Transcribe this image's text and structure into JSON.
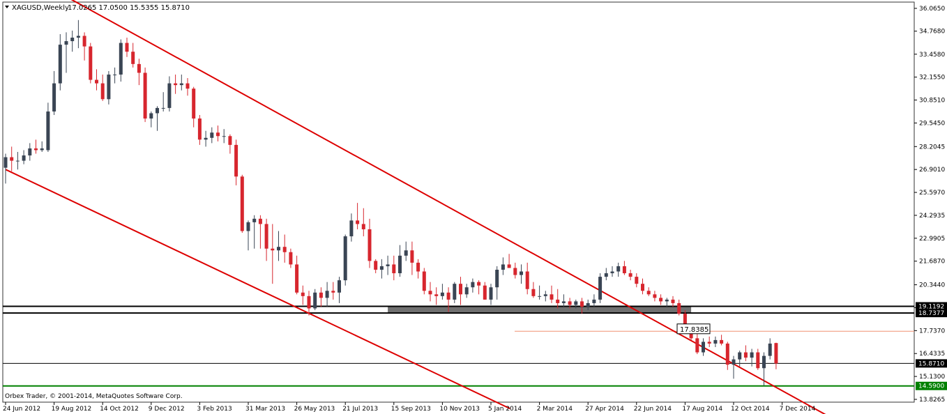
{
  "header": {
    "symbol": "XAGUSD,Weekly",
    "ohlc": "17.0265 17.0500 15.5355 15.8710"
  },
  "footer": {
    "copyright": "Orbex Trader, © 2001-2014, MetaQuotes Software Corp."
  },
  "colors": {
    "background": "#ffffff",
    "bull_candle": "#3a4554",
    "bear_candle": "#d7262e",
    "channel": "#dd0000",
    "support": "#000000",
    "zone": "#707070",
    "low_line": "#008000",
    "resistance_line": "#f09070"
  },
  "chart_data": {
    "type": "candlestick",
    "symbol": "XAGUSD",
    "timeframe": "Weekly",
    "grid": false,
    "ylim": [
      13.2,
      36.5
    ],
    "y_ticks": [
      "36.0650",
      "34.7680",
      "33.4580",
      "32.1550",
      "30.8510",
      "29.5450",
      "28.2045",
      "26.9010",
      "25.5970",
      "24.2935",
      "22.9905",
      "21.6870",
      "20.3440",
      "19.0410",
      "17.7370",
      "16.4335",
      "15.1300",
      "13.8265"
    ],
    "x_ticks": [
      "24 Jun 2012",
      "19 Aug 2012",
      "14 Oct 2012",
      "9 Dec 2012",
      "3 Feb 2013",
      "31 Mar 2013",
      "26 May 2013",
      "21 Jul 2013",
      "15 Sep 2013",
      "10 Nov 2013",
      "5 Jan 2014",
      "2 Mar 2014",
      "27 Apr 2014",
      "22 Jun 2014",
      "17 Aug 2014",
      "12 Oct 2014",
      "7 Dec 2014"
    ],
    "price_labels": [
      {
        "text": "19.1192",
        "value": 19.1192,
        "style": "dark"
      },
      {
        "text": "18.7377",
        "value": 18.7377,
        "style": "dark"
      },
      {
        "text": "15.8710",
        "value": 15.871,
        "style": "dark"
      },
      {
        "text": "14.5900",
        "value": 14.59,
        "style": "green"
      }
    ],
    "annotation": {
      "text": "17.8385",
      "value": 17.8385
    },
    "horizontal_lines": [
      {
        "name": "support-upper",
        "value": 19.1192
      },
      {
        "name": "support-lower",
        "value": 18.7377
      },
      {
        "name": "current-close",
        "value": 15.871
      },
      {
        "name": "low",
        "value": 14.59
      },
      {
        "name": "resistance-thin",
        "value": 17.7
      }
    ],
    "support_zone": {
      "from": "8 Sep 2013",
      "to": "24 Aug 2014",
      "low": 18.7377,
      "high": 19.1192
    },
    "channel_lines": [
      {
        "name": "channel-upper",
        "from": {
          "date": "12 Aug 2012",
          "price": 37.3
        },
        "to": {
          "date": "1 Feb 2015",
          "price": 12.8
        }
      },
      {
        "name": "channel-lower",
        "from": {
          "date": "24 Jun 2012",
          "price": 26.9
        },
        "to": {
          "date": "27 Jan 2014",
          "price": 13.3
        }
      }
    ],
    "candles": [
      [
        27.0,
        27.8,
        26.1,
        27.6
      ],
      [
        27.6,
        28.2,
        26.8,
        27.4
      ],
      [
        27.4,
        27.9,
        26.9,
        27.4
      ],
      [
        27.4,
        28.0,
        27.2,
        27.7
      ],
      [
        27.7,
        28.4,
        27.4,
        28.1
      ],
      [
        28.1,
        28.6,
        27.8,
        28.0
      ],
      [
        28.0,
        28.5,
        27.9,
        28.1
      ],
      [
        28.0,
        30.7,
        27.9,
        30.2
      ],
      [
        30.2,
        32.5,
        30.0,
        31.8
      ],
      [
        31.8,
        34.6,
        31.4,
        34.0
      ],
      [
        34.0,
        34.7,
        32.4,
        34.2
      ],
      [
        34.2,
        34.8,
        33.6,
        34.4
      ],
      [
        34.4,
        35.4,
        33.8,
        34.5
      ],
      [
        34.5,
        34.7,
        33.1,
        33.9
      ],
      [
        33.9,
        34.1,
        31.8,
        32.0
      ],
      [
        32.0,
        32.6,
        31.4,
        31.8
      ],
      [
        31.8,
        32.3,
        30.8,
        30.9
      ],
      [
        30.9,
        32.5,
        30.6,
        32.3
      ],
      [
        32.3,
        32.7,
        31.8,
        32.3
      ],
      [
        32.3,
        34.3,
        31.9,
        34.1
      ],
      [
        34.1,
        34.4,
        33.3,
        33.6
      ],
      [
        33.6,
        34.1,
        32.7,
        32.9
      ],
      [
        32.9,
        33.2,
        31.7,
        32.4
      ],
      [
        32.4,
        32.7,
        29.6,
        29.8
      ],
      [
        29.8,
        30.2,
        29.3,
        30.1
      ],
      [
        30.1,
        30.5,
        29.1,
        30.4
      ],
      [
        30.4,
        31.3,
        30.2,
        30.4
      ],
      [
        30.4,
        32.2,
        30.2,
        31.8
      ],
      [
        31.8,
        32.3,
        31.2,
        31.7
      ],
      [
        31.7,
        32.3,
        31.4,
        31.8
      ],
      [
        31.8,
        32.1,
        31.1,
        31.5
      ],
      [
        31.5,
        31.6,
        29.3,
        29.8
      ],
      [
        29.8,
        30.0,
        28.3,
        28.6
      ],
      [
        28.6,
        29.1,
        28.2,
        28.7
      ],
      [
        28.7,
        29.3,
        28.4,
        29.0
      ],
      [
        29.0,
        29.4,
        28.5,
        28.8
      ],
      [
        28.8,
        29.2,
        28.4,
        28.8
      ],
      [
        28.8,
        28.9,
        27.8,
        28.3
      ],
      [
        28.3,
        28.6,
        26.0,
        26.5
      ],
      [
        26.5,
        26.6,
        23.3,
        23.4
      ],
      [
        23.4,
        24.0,
        22.3,
        23.9
      ],
      [
        23.9,
        24.3,
        22.4,
        24.1
      ],
      [
        24.1,
        24.3,
        22.4,
        23.8
      ],
      [
        23.8,
        24.1,
        21.7,
        22.4
      ],
      [
        22.4,
        23.8,
        20.4,
        22.3
      ],
      [
        22.3,
        23.4,
        21.7,
        22.5
      ],
      [
        22.5,
        23.2,
        21.6,
        22.2
      ],
      [
        22.2,
        22.4,
        21.3,
        21.5
      ],
      [
        21.5,
        22.0,
        19.8,
        19.9
      ],
      [
        19.9,
        20.3,
        19.2,
        19.7
      ],
      [
        19.7,
        20.0,
        18.6,
        19.0
      ],
      [
        19.0,
        20.1,
        18.9,
        19.9
      ],
      [
        19.9,
        20.2,
        19.1,
        19.6
      ],
      [
        19.6,
        20.5,
        19.1,
        20.0
      ],
      [
        20.0,
        20.5,
        19.5,
        19.9
      ],
      [
        19.9,
        20.8,
        19.3,
        20.6
      ],
      [
        20.6,
        23.2,
        20.3,
        23.1
      ],
      [
        23.1,
        24.4,
        22.8,
        24.0
      ],
      [
        24.0,
        25.0,
        23.5,
        23.8
      ],
      [
        23.8,
        24.7,
        23.1,
        23.5
      ],
      [
        23.5,
        24.1,
        21.3,
        21.7
      ],
      [
        21.7,
        21.8,
        21.0,
        21.2
      ],
      [
        21.2,
        21.8,
        20.7,
        21.4
      ],
      [
        21.4,
        22.0,
        20.9,
        21.5
      ],
      [
        21.5,
        22.0,
        20.6,
        21.0
      ],
      [
        21.0,
        22.6,
        20.8,
        22.0
      ],
      [
        22.0,
        22.8,
        21.7,
        22.3
      ],
      [
        22.3,
        22.8,
        20.9,
        21.6
      ],
      [
        21.6,
        21.8,
        20.7,
        21.1
      ],
      [
        21.1,
        21.3,
        19.8,
        20.0
      ],
      [
        20.0,
        20.5,
        19.4,
        19.8
      ],
      [
        19.8,
        20.2,
        19.2,
        19.7
      ],
      [
        19.7,
        20.4,
        19.5,
        19.9
      ],
      [
        19.9,
        20.2,
        18.8,
        19.5
      ],
      [
        19.5,
        20.5,
        19.3,
        20.4
      ],
      [
        20.4,
        20.8,
        19.2,
        19.8
      ],
      [
        19.8,
        20.4,
        19.6,
        20.2
      ],
      [
        20.2,
        20.7,
        19.9,
        20.5
      ],
      [
        20.5,
        20.6,
        19.8,
        20.3
      ],
      [
        20.3,
        20.5,
        19.5,
        19.5
      ],
      [
        19.5,
        20.4,
        19.2,
        20.2
      ],
      [
        20.2,
        21.4,
        19.5,
        21.2
      ],
      [
        21.2,
        21.9,
        20.9,
        21.5
      ],
      [
        21.5,
        22.1,
        21.3,
        21.3
      ],
      [
        21.3,
        21.6,
        20.7,
        20.9
      ],
      [
        20.9,
        21.5,
        20.4,
        21.1
      ],
      [
        21.1,
        21.6,
        19.8,
        20.1
      ],
      [
        20.1,
        20.5,
        19.6,
        19.7
      ],
      [
        19.7,
        20.3,
        19.5,
        19.7
      ],
      [
        19.7,
        20.0,
        19.4,
        19.8
      ],
      [
        19.8,
        20.3,
        19.3,
        19.5
      ],
      [
        19.5,
        20.1,
        19.0,
        19.3
      ],
      [
        19.3,
        19.8,
        19.1,
        19.4
      ],
      [
        19.4,
        19.6,
        19.0,
        19.2
      ],
      [
        19.2,
        19.5,
        19.0,
        19.4
      ],
      [
        19.4,
        19.6,
        18.7,
        19.1
      ],
      [
        19.1,
        19.5,
        18.9,
        19.3
      ],
      [
        19.3,
        19.8,
        19.1,
        19.5
      ],
      [
        19.5,
        21.0,
        19.3,
        20.8
      ],
      [
        20.8,
        21.3,
        20.6,
        21.0
      ],
      [
        21.0,
        21.4,
        20.8,
        21.1
      ],
      [
        21.1,
        21.6,
        20.8,
        21.4
      ],
      [
        21.4,
        21.7,
        20.9,
        21.0
      ],
      [
        21.0,
        21.2,
        20.6,
        20.8
      ],
      [
        20.8,
        21.0,
        20.2,
        20.4
      ],
      [
        20.4,
        20.7,
        19.8,
        20.0
      ],
      [
        20.0,
        20.2,
        19.7,
        19.8
      ],
      [
        19.8,
        20.0,
        19.4,
        19.6
      ],
      [
        19.6,
        19.8,
        19.2,
        19.4
      ],
      [
        19.4,
        19.6,
        19.1,
        19.5
      ],
      [
        19.5,
        19.7,
        19.1,
        19.3
      ],
      [
        19.3,
        19.5,
        18.6,
        18.7
      ],
      [
        18.7,
        18.9,
        17.8,
        17.9
      ],
      [
        17.9,
        18.1,
        17.2,
        17.3
      ],
      [
        17.3,
        17.6,
        16.4,
        16.5
      ],
      [
        16.5,
        17.3,
        16.3,
        17.1
      ],
      [
        17.1,
        17.4,
        16.8,
        17.0
      ],
      [
        17.0,
        17.4,
        16.8,
        17.2
      ],
      [
        17.2,
        17.5,
        16.9,
        17.0
      ],
      [
        17.0,
        17.1,
        15.5,
        15.8
      ],
      [
        15.8,
        16.3,
        15.0,
        16.1
      ],
      [
        16.1,
        16.6,
        15.7,
        16.5
      ],
      [
        16.5,
        16.9,
        16.0,
        16.2
      ],
      [
        16.2,
        16.7,
        15.7,
        16.5
      ],
      [
        16.5,
        16.7,
        15.5,
        15.6
      ],
      [
        15.6,
        16.5,
        14.6,
        16.3
      ],
      [
        16.3,
        17.3,
        16.1,
        17.0
      ],
      [
        17.03,
        17.05,
        15.54,
        15.87
      ]
    ]
  }
}
